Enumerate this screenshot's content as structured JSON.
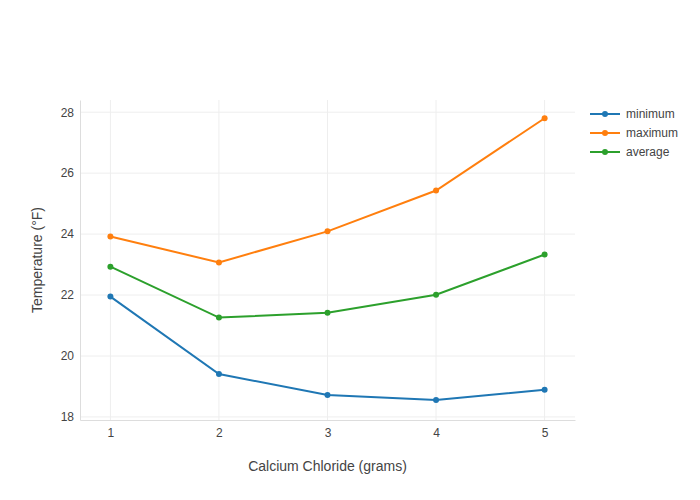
{
  "chart_data": {
    "type": "line",
    "x_label": "Calcium Chloride (grams)",
    "y_label": "Temperature (°F)",
    "x": [
      1,
      2,
      3,
      4,
      5
    ],
    "series": [
      {
        "name": "minimum",
        "color": "#1f77b4",
        "values": [
          21.95,
          19.41,
          18.72,
          18.56,
          18.89
        ]
      },
      {
        "name": "maximum",
        "color": "#ff7f0e",
        "values": [
          23.92,
          23.07,
          24.09,
          25.43,
          27.8
        ]
      },
      {
        "name": "average",
        "color": "#2ca02c",
        "values": [
          22.93,
          21.26,
          21.42,
          22.01,
          23.33
        ]
      }
    ],
    "xlim": [
      0.72,
      5.28
    ],
    "xticks": [
      1,
      2,
      3,
      4,
      5
    ],
    "ylim": [
      17.9,
      28.4
    ],
    "yticks": [
      18,
      20,
      22,
      24,
      26,
      28
    ],
    "grid": true,
    "legend": "right",
    "marker": "circle"
  }
}
